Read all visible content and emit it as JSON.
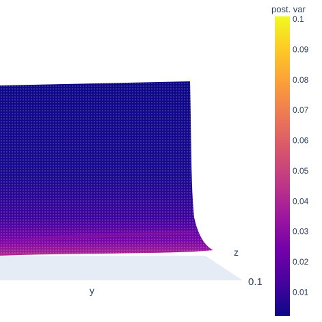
{
  "chart_data": {
    "type": "surface3d",
    "title": "",
    "axes": {
      "y_title": "y",
      "z_title": "z",
      "visible_tick_label": "0.1"
    },
    "colorbar": {
      "title": "post. var",
      "colorscale": "plasma",
      "range": [
        0.002,
        0.1
      ],
      "ticks": [
        "0.1",
        "0.09",
        "0.08",
        "0.07",
        "0.06",
        "0.05",
        "0.04",
        "0.03",
        "0.02",
        "0.01"
      ]
    },
    "surface": {
      "description_values": "posterior variance surface; low (~0.002) over most of the domain, rising to ~0.02-0.03 near the front edge",
      "min_value": 0.002,
      "max_front_value": 0.03
    }
  }
}
